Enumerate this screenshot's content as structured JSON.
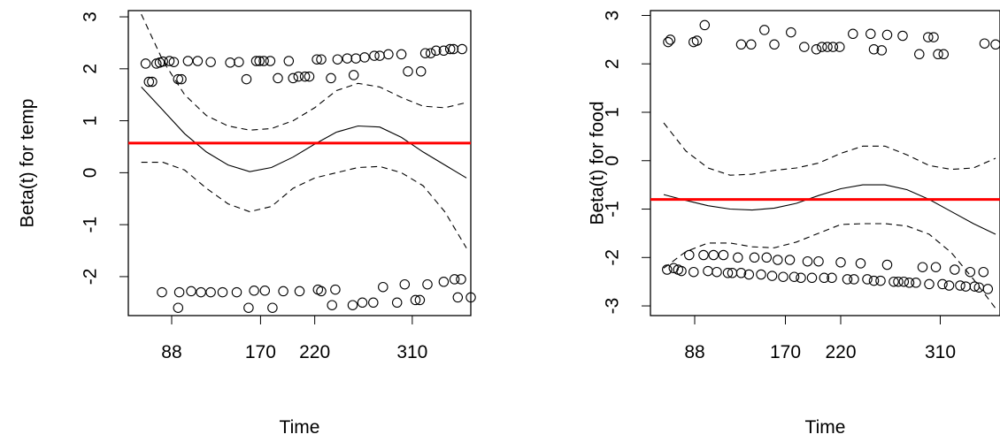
{
  "chart_data": [
    {
      "type": "scatter",
      "title": "",
      "xlabel": "Time",
      "ylabel": "Beta(t) for temp",
      "x_ticks": [
        88,
        170,
        220,
        310
      ],
      "x_tick_labels": [
        "88",
        "170",
        "220",
        "310"
      ],
      "y_ticks": [
        -2,
        -1,
        0,
        1,
        2,
        3
      ],
      "y_tick_labels": [
        "-2",
        "-1",
        "0",
        "1",
        "2",
        "3"
      ],
      "xlim": [
        48,
        364
      ],
      "ylim": [
        -2.75,
        3.12
      ],
      "grid": false,
      "points": [
        {
          "x": 64,
          "y": 2.1
        },
        {
          "x": 67,
          "y": 1.75
        },
        {
          "x": 70,
          "y": 1.75
        },
        {
          "x": 74,
          "y": 2.1
        },
        {
          "x": 77,
          "y": 2.12
        },
        {
          "x": 80,
          "y": 2.14
        },
        {
          "x": 86,
          "y": 2.15
        },
        {
          "x": 90,
          "y": 2.13
        },
        {
          "x": 94,
          "y": 1.8
        },
        {
          "x": 97,
          "y": 1.8
        },
        {
          "x": 103,
          "y": 2.15
        },
        {
          "x": 112,
          "y": 2.15
        },
        {
          "x": 124,
          "y": 2.13
        },
        {
          "x": 142,
          "y": 2.12
        },
        {
          "x": 150,
          "y": 2.13
        },
        {
          "x": 157,
          "y": 1.8
        },
        {
          "x": 166,
          "y": 2.15
        },
        {
          "x": 169,
          "y": 2.15
        },
        {
          "x": 173,
          "y": 2.15
        },
        {
          "x": 179,
          "y": 2.15
        },
        {
          "x": 186,
          "y": 1.82
        },
        {
          "x": 196,
          "y": 2.15
        },
        {
          "x": 200,
          "y": 1.82
        },
        {
          "x": 205,
          "y": 1.85
        },
        {
          "x": 211,
          "y": 1.85
        },
        {
          "x": 215,
          "y": 1.85
        },
        {
          "x": 222,
          "y": 2.18
        },
        {
          "x": 226,
          "y": 2.18
        },
        {
          "x": 235,
          "y": 1.82
        },
        {
          "x": 241,
          "y": 2.18
        },
        {
          "x": 250,
          "y": 2.2
        },
        {
          "x": 256,
          "y": 1.88
        },
        {
          "x": 258,
          "y": 2.2
        },
        {
          "x": 266,
          "y": 2.22
        },
        {
          "x": 275,
          "y": 2.25
        },
        {
          "x": 280,
          "y": 2.25
        },
        {
          "x": 288,
          "y": 2.28
        },
        {
          "x": 300,
          "y": 2.28
        },
        {
          "x": 306,
          "y": 1.95
        },
        {
          "x": 318,
          "y": 1.95
        },
        {
          "x": 322,
          "y": 2.3
        },
        {
          "x": 327,
          "y": 2.3
        },
        {
          "x": 332,
          "y": 2.35
        },
        {
          "x": 339,
          "y": 2.35
        },
        {
          "x": 345,
          "y": 2.38
        },
        {
          "x": 348,
          "y": 2.38
        },
        {
          "x": 356,
          "y": 2.38
        },
        {
          "x": 79,
          "y": -2.3
        },
        {
          "x": 94,
          "y": -2.6
        },
        {
          "x": 95,
          "y": -2.3
        },
        {
          "x": 106,
          "y": -2.28
        },
        {
          "x": 115,
          "y": -2.3
        },
        {
          "x": 124,
          "y": -2.3
        },
        {
          "x": 135,
          "y": -2.3
        },
        {
          "x": 148,
          "y": -2.3
        },
        {
          "x": 159,
          "y": -2.6
        },
        {
          "x": 164,
          "y": -2.27
        },
        {
          "x": 174,
          "y": -2.27
        },
        {
          "x": 181,
          "y": -2.6
        },
        {
          "x": 191,
          "y": -2.28
        },
        {
          "x": 206,
          "y": -2.28
        },
        {
          "x": 223,
          "y": -2.25
        },
        {
          "x": 226,
          "y": -2.28
        },
        {
          "x": 236,
          "y": -2.55
        },
        {
          "x": 239,
          "y": -2.25
        },
        {
          "x": 255,
          "y": -2.55
        },
        {
          "x": 264,
          "y": -2.5
        },
        {
          "x": 274,
          "y": -2.5
        },
        {
          "x": 283,
          "y": -2.2
        },
        {
          "x": 296,
          "y": -2.5
        },
        {
          "x": 303,
          "y": -2.15
        },
        {
          "x": 313,
          "y": -2.45
        },
        {
          "x": 317,
          "y": -2.45
        },
        {
          "x": 324,
          "y": -2.15
        },
        {
          "x": 339,
          "y": -2.1
        },
        {
          "x": 349,
          "y": -2.05
        },
        {
          "x": 352,
          "y": -2.4
        },
        {
          "x": 355,
          "y": -2.05
        },
        {
          "x": 364,
          "y": -2.4
        }
      ],
      "fit": {
        "x": [
          60,
          80,
          100,
          120,
          140,
          160,
          180,
          200,
          220,
          240,
          260,
          280,
          300,
          320,
          340,
          360
        ],
        "y": [
          1.65,
          1.2,
          0.75,
          0.4,
          0.15,
          0.02,
          0.1,
          0.3,
          0.55,
          0.78,
          0.9,
          0.88,
          0.68,
          0.4,
          0.15,
          -0.1
        ]
      },
      "upper": {
        "x": [
          60,
          80,
          100,
          120,
          140,
          160,
          180,
          200,
          220,
          240,
          260,
          280,
          300,
          320,
          340,
          360
        ],
        "y": [
          3.05,
          2.15,
          1.5,
          1.1,
          0.9,
          0.82,
          0.85,
          1.0,
          1.25,
          1.58,
          1.72,
          1.65,
          1.45,
          1.28,
          1.25,
          1.35
        ]
      },
      "lower": {
        "x": [
          60,
          80,
          100,
          120,
          140,
          160,
          180,
          200,
          220,
          240,
          260,
          280,
          300,
          320,
          340,
          360
        ],
        "y": [
          0.2,
          0.2,
          0.05,
          -0.3,
          -0.6,
          -0.75,
          -0.65,
          -0.3,
          -0.1,
          0.0,
          0.1,
          0.12,
          0.0,
          -0.25,
          -0.75,
          -1.45
        ]
      },
      "hline": {
        "y": 0.57,
        "color": "#ff0000"
      }
    },
    {
      "type": "scatter",
      "title": "",
      "xlabel": "Time",
      "ylabel": "Beta(t) for food",
      "x_ticks": [
        88,
        170,
        220,
        310
      ],
      "x_tick_labels": [
        "88",
        "170",
        "220",
        "310"
      ],
      "y_ticks": [
        -3,
        -2,
        -1,
        0,
        1,
        2,
        3
      ],
      "y_tick_labels": [
        "-3",
        "-2",
        "-1",
        "0",
        "1",
        "2",
        "3"
      ],
      "xlim": [
        48,
        364
      ],
      "ylim": [
        -3.2,
        3.1
      ],
      "grid": false,
      "points": [
        {
          "x": 64,
          "y": 2.45
        },
        {
          "x": 66,
          "y": 2.5
        },
        {
          "x": 87,
          "y": 2.45
        },
        {
          "x": 90,
          "y": 2.48
        },
        {
          "x": 97,
          "y": 2.8
        },
        {
          "x": 130,
          "y": 2.4
        },
        {
          "x": 139,
          "y": 2.4
        },
        {
          "x": 151,
          "y": 2.7
        },
        {
          "x": 160,
          "y": 2.4
        },
        {
          "x": 175,
          "y": 2.65
        },
        {
          "x": 187,
          "y": 2.35
        },
        {
          "x": 198,
          "y": 2.3
        },
        {
          "x": 203,
          "y": 2.35
        },
        {
          "x": 208,
          "y": 2.35
        },
        {
          "x": 213,
          "y": 2.35
        },
        {
          "x": 219,
          "y": 2.35
        },
        {
          "x": 231,
          "y": 2.62
        },
        {
          "x": 247,
          "y": 2.62
        },
        {
          "x": 250,
          "y": 2.3
        },
        {
          "x": 257,
          "y": 2.28
        },
        {
          "x": 262,
          "y": 2.6
        },
        {
          "x": 276,
          "y": 2.58
        },
        {
          "x": 291,
          "y": 2.2
        },
        {
          "x": 299,
          "y": 2.55
        },
        {
          "x": 304,
          "y": 2.55
        },
        {
          "x": 308,
          "y": 2.2
        },
        {
          "x": 313,
          "y": 2.2
        },
        {
          "x": 350,
          "y": 2.42
        },
        {
          "x": 360,
          "y": 2.4
        },
        {
          "x": 63,
          "y": -2.25
        },
        {
          "x": 69,
          "y": -2.22
        },
        {
          "x": 73,
          "y": -2.25
        },
        {
          "x": 76,
          "y": -2.28
        },
        {
          "x": 83,
          "y": -1.95
        },
        {
          "x": 87,
          "y": -2.3
        },
        {
          "x": 96,
          "y": -1.95
        },
        {
          "x": 100,
          "y": -2.28
        },
        {
          "x": 105,
          "y": -1.95
        },
        {
          "x": 108,
          "y": -2.3
        },
        {
          "x": 114,
          "y": -1.95
        },
        {
          "x": 118,
          "y": -2.32
        },
        {
          "x": 122,
          "y": -2.32
        },
        {
          "x": 127,
          "y": -2.0
        },
        {
          "x": 130,
          "y": -2.32
        },
        {
          "x": 137,
          "y": -2.35
        },
        {
          "x": 142,
          "y": -2.0
        },
        {
          "x": 148,
          "y": -2.35
        },
        {
          "x": 153,
          "y": -2.0
        },
        {
          "x": 158,
          "y": -2.38
        },
        {
          "x": 163,
          "y": -2.05
        },
        {
          "x": 168,
          "y": -2.4
        },
        {
          "x": 174,
          "y": -2.05
        },
        {
          "x": 178,
          "y": -2.4
        },
        {
          "x": 184,
          "y": -2.42
        },
        {
          "x": 190,
          "y": -2.08
        },
        {
          "x": 194,
          "y": -2.42
        },
        {
          "x": 200,
          "y": -2.08
        },
        {
          "x": 205,
          "y": -2.42
        },
        {
          "x": 212,
          "y": -2.42
        },
        {
          "x": 220,
          "y": -2.1
        },
        {
          "x": 226,
          "y": -2.45
        },
        {
          "x": 232,
          "y": -2.45
        },
        {
          "x": 238,
          "y": -2.12
        },
        {
          "x": 244,
          "y": -2.45
        },
        {
          "x": 250,
          "y": -2.48
        },
        {
          "x": 256,
          "y": -2.48
        },
        {
          "x": 262,
          "y": -2.15
        },
        {
          "x": 268,
          "y": -2.5
        },
        {
          "x": 272,
          "y": -2.5
        },
        {
          "x": 277,
          "y": -2.5
        },
        {
          "x": 282,
          "y": -2.52
        },
        {
          "x": 288,
          "y": -2.52
        },
        {
          "x": 294,
          "y": -2.2
        },
        {
          "x": 300,
          "y": -2.55
        },
        {
          "x": 306,
          "y": -2.2
        },
        {
          "x": 312,
          "y": -2.55
        },
        {
          "x": 318,
          "y": -2.58
        },
        {
          "x": 323,
          "y": -2.25
        },
        {
          "x": 328,
          "y": -2.58
        },
        {
          "x": 333,
          "y": -2.6
        },
        {
          "x": 337,
          "y": -2.3
        },
        {
          "x": 341,
          "y": -2.6
        },
        {
          "x": 345,
          "y": -2.62
        },
        {
          "x": 349,
          "y": -2.3
        },
        {
          "x": 353,
          "y": -2.65
        }
      ],
      "fit": {
        "x": [
          60,
          80,
          100,
          120,
          140,
          160,
          180,
          200,
          220,
          240,
          260,
          280,
          300,
          320,
          340,
          360
        ],
        "y": [
          -0.7,
          -0.82,
          -0.93,
          -1.0,
          -1.02,
          -0.98,
          -0.88,
          -0.72,
          -0.58,
          -0.5,
          -0.5,
          -0.6,
          -0.8,
          -1.05,
          -1.3,
          -1.52
        ]
      },
      "upper": {
        "x": [
          60,
          80,
          100,
          120,
          140,
          160,
          180,
          200,
          220,
          240,
          260,
          280,
          300,
          320,
          340,
          360
        ],
        "y": [
          0.78,
          0.2,
          -0.15,
          -0.3,
          -0.28,
          -0.2,
          -0.15,
          -0.05,
          0.15,
          0.3,
          0.3,
          0.12,
          -0.1,
          -0.18,
          -0.15,
          0.05
        ]
      },
      "lower": {
        "x": [
          60,
          80,
          100,
          120,
          140,
          160,
          180,
          200,
          220,
          240,
          260,
          280,
          300,
          320,
          340,
          360
        ],
        "y": [
          -2.22,
          -1.88,
          -1.7,
          -1.7,
          -1.78,
          -1.8,
          -1.68,
          -1.5,
          -1.32,
          -1.3,
          -1.3,
          -1.35,
          -1.52,
          -1.9,
          -2.45,
          -3.05
        ]
      },
      "hline": {
        "y": -0.8,
        "color": "#ff0000"
      }
    }
  ]
}
